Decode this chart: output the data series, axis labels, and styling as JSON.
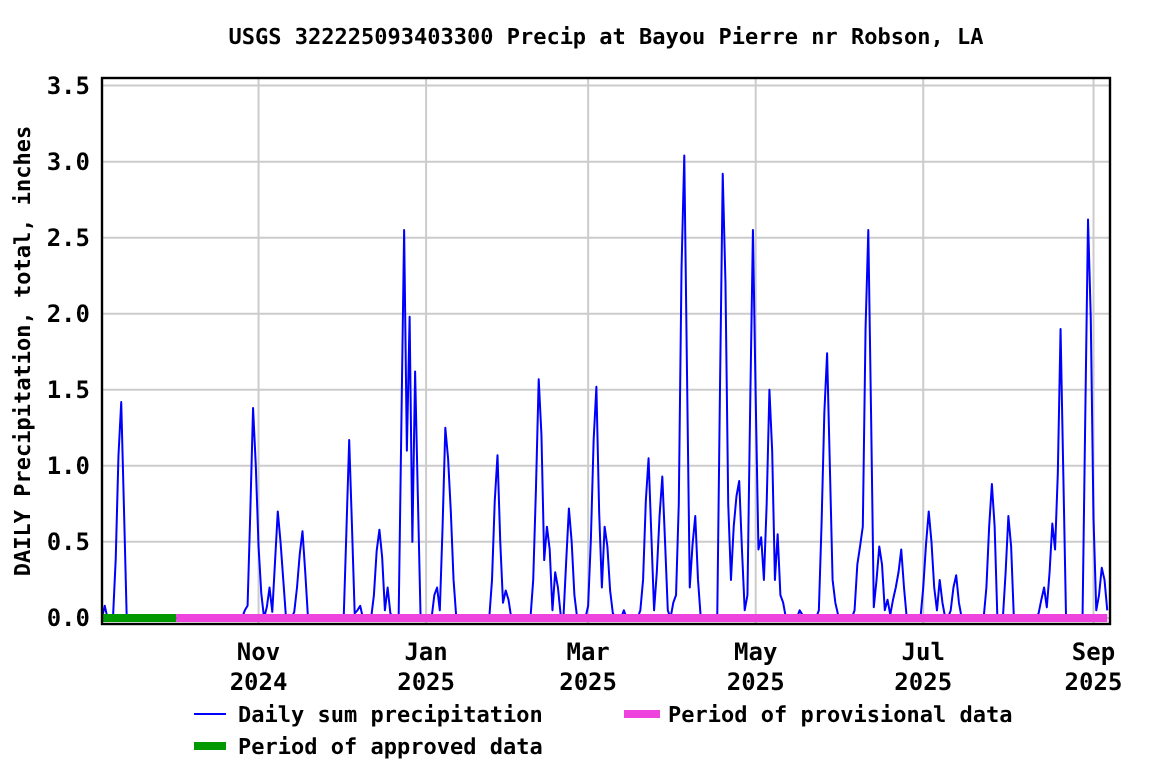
{
  "chart_data": {
    "type": "line",
    "title": "USGS 322225093403300 Precip at Bayou Pierre nr Robson, LA",
    "ylabel": "DAILY Precipitation, total, inches",
    "xlim": [
      "2024-09-05",
      "2025-09-07"
    ],
    "xticks": [
      {
        "value": "2024-11-01",
        "label": "Nov\n2024"
      },
      {
        "value": "2025-01-01",
        "label": "Jan\n2025"
      },
      {
        "value": "2025-03-01",
        "label": "Mar\n2025"
      },
      {
        "value": "2025-05-01",
        "label": "May\n2025"
      },
      {
        "value": "2025-07-01",
        "label": "Jul\n2025"
      },
      {
        "value": "2025-09-01",
        "label": "Sep\n2025"
      }
    ],
    "ylim": [
      -0.04,
      3.55
    ],
    "yticks": [
      {
        "value": 0,
        "label": "0.0"
      },
      {
        "value": 0.5,
        "label": "0.5"
      },
      {
        "value": 1,
        "label": "1.0"
      },
      {
        "value": 1.5,
        "label": "1.5"
      },
      {
        "value": 2,
        "label": "2.0"
      },
      {
        "value": 2.5,
        "label": "2.5"
      },
      {
        "value": 3,
        "label": "3.0"
      },
      {
        "value": 3.5,
        "label": "3.5"
      }
    ],
    "grid": true,
    "legend": "bottom",
    "marker": "none",
    "line_style": "solid",
    "series": [
      {
        "name": "Daily sum precipitation",
        "color": "#0000ff",
        "x": [
          "2024-09-05",
          "2024-09-06",
          "2024-09-07",
          "2024-09-09",
          "2024-09-10",
          "2024-09-11",
          "2024-09-12",
          "2024-09-13",
          "2024-09-14",
          "2024-09-28",
          "2024-09-30",
          "2024-10-26",
          "2024-10-27",
          "2024-10-28",
          "2024-10-29",
          "2024-10-30",
          "2024-10-31",
          "2024-11-01",
          "2024-11-02",
          "2024-11-03",
          "2024-11-04",
          "2024-11-05",
          "2024-11-06",
          "2024-11-07",
          "2024-11-08",
          "2024-11-09",
          "2024-11-10",
          "2024-11-11",
          "2024-11-12",
          "2024-11-13",
          "2024-11-14",
          "2024-11-15",
          "2024-11-16",
          "2024-11-17",
          "2024-11-18",
          "2024-11-19",
          "2024-12-02",
          "2024-12-03",
          "2024-12-04",
          "2024-12-05",
          "2024-12-06",
          "2024-12-07",
          "2024-12-08",
          "2024-12-09",
          "2024-12-12",
          "2024-12-13",
          "2024-12-14",
          "2024-12-15",
          "2024-12-16",
          "2024-12-17",
          "2024-12-18",
          "2024-12-19",
          "2024-12-20",
          "2024-12-22",
          "2024-12-23",
          "2024-12-24",
          "2024-12-25",
          "2024-12-26",
          "2024-12-27",
          "2024-12-28",
          "2024-12-29",
          "2024-12-30",
          "2025-01-03",
          "2025-01-04",
          "2025-01-05",
          "2025-01-06",
          "2025-01-07",
          "2025-01-08",
          "2025-01-09",
          "2025-01-10",
          "2025-01-11",
          "2025-01-12",
          "2025-01-18",
          "2025-01-20",
          "2025-01-24",
          "2025-01-25",
          "2025-01-26",
          "2025-01-27",
          "2025-01-28",
          "2025-01-29",
          "2025-01-30",
          "2025-01-31",
          "2025-02-01",
          "2025-02-08",
          "2025-02-09",
          "2025-02-10",
          "2025-02-11",
          "2025-02-12",
          "2025-02-13",
          "2025-02-14",
          "2025-02-15",
          "2025-02-16",
          "2025-02-17",
          "2025-02-18",
          "2025-02-19",
          "2025-02-20",
          "2025-02-21",
          "2025-02-22",
          "2025-02-23",
          "2025-02-24",
          "2025-02-25",
          "2025-02-28",
          "2025-03-01",
          "2025-03-02",
          "2025-03-03",
          "2025-03-04",
          "2025-03-05",
          "2025-03-06",
          "2025-03-07",
          "2025-03-08",
          "2025-03-09",
          "2025-03-10",
          "2025-03-11",
          "2025-03-13",
          "2025-03-14",
          "2025-03-15",
          "2025-03-19",
          "2025-03-20",
          "2025-03-21",
          "2025-03-22",
          "2025-03-23",
          "2025-03-24",
          "2025-03-25",
          "2025-03-26",
          "2025-03-27",
          "2025-03-28",
          "2025-03-29",
          "2025-03-30",
          "2025-03-31",
          "2025-04-01",
          "2025-04-02",
          "2025-04-03",
          "2025-04-04",
          "2025-04-05",
          "2025-04-06",
          "2025-04-07",
          "2025-04-08",
          "2025-04-09",
          "2025-04-10",
          "2025-04-11",
          "2025-04-17",
          "2025-04-18",
          "2025-04-19",
          "2025-04-20",
          "2025-04-21",
          "2025-04-22",
          "2025-04-23",
          "2025-04-24",
          "2025-04-25",
          "2025-04-26",
          "2025-04-27",
          "2025-04-28",
          "2025-04-29",
          "2025-04-30",
          "2025-05-01",
          "2025-05-02",
          "2025-05-03",
          "2025-05-04",
          "2025-05-05",
          "2025-05-06",
          "2025-05-07",
          "2025-05-08",
          "2025-05-09",
          "2025-05-10",
          "2025-05-11",
          "2025-05-12",
          "2025-05-15",
          "2025-05-16",
          "2025-05-17",
          "2025-05-18",
          "2025-05-19",
          "2025-05-21",
          "2025-05-22",
          "2025-05-23",
          "2025-05-24",
          "2025-05-25",
          "2025-05-26",
          "2025-05-27",
          "2025-05-28",
          "2025-05-29",
          "2025-05-30",
          "2025-05-31",
          "2025-06-01",
          "2025-06-02",
          "2025-06-03",
          "2025-06-05",
          "2025-06-06",
          "2025-06-07",
          "2025-06-08",
          "2025-06-09",
          "2025-06-10",
          "2025-06-11",
          "2025-06-12",
          "2025-06-13",
          "2025-06-14",
          "2025-06-15",
          "2025-06-16",
          "2025-06-17",
          "2025-06-18",
          "2025-06-19",
          "2025-06-20",
          "2025-06-21",
          "2025-06-22",
          "2025-06-23",
          "2025-06-24",
          "2025-06-25",
          "2025-06-30",
          "2025-07-01",
          "2025-07-02",
          "2025-07-03",
          "2025-07-04",
          "2025-07-05",
          "2025-07-06",
          "2025-07-07",
          "2025-07-08",
          "2025-07-09",
          "2025-07-10",
          "2025-07-11",
          "2025-07-12",
          "2025-07-13",
          "2025-07-14",
          "2025-07-15",
          "2025-07-23",
          "2025-07-24",
          "2025-07-25",
          "2025-07-26",
          "2025-07-27",
          "2025-07-28",
          "2025-07-30",
          "2025-07-31",
          "2025-08-01",
          "2025-08-02",
          "2025-08-03",
          "2025-08-08",
          "2025-08-09",
          "2025-08-10",
          "2025-08-11",
          "2025-08-12",
          "2025-08-13",
          "2025-08-14",
          "2025-08-15",
          "2025-08-16",
          "2025-08-17",
          "2025-08-18",
          "2025-08-19",
          "2025-08-20",
          "2025-08-21",
          "2025-08-22",
          "2025-08-28",
          "2025-08-29",
          "2025-08-30",
          "2025-08-31",
          "2025-09-01",
          "2025-09-02",
          "2025-09-03",
          "2025-09-04",
          "2025-09-05",
          "2025-09-06"
        ],
        "values": [
          0,
          0.08,
          0,
          0,
          0.39,
          1.07,
          1.42,
          0.72,
          0,
          0,
          0,
          0,
          0.05,
          0.08,
          0.7,
          1.38,
          1.0,
          0.47,
          0.16,
          0,
          0.07,
          0.2,
          0.04,
          0.37,
          0.7,
          0.5,
          0.25,
          0,
          0.02,
          0,
          0.04,
          0.2,
          0.42,
          0.57,
          0.3,
          0,
          0,
          0.58,
          1.17,
          0.61,
          0.03,
          0.05,
          0.08,
          0,
          0,
          0.15,
          0.44,
          0.58,
          0.4,
          0.05,
          0.2,
          0.03,
          0,
          0,
          1.27,
          2.55,
          1.1,
          1.98,
          0.5,
          1.62,
          0.8,
          0,
          0,
          0.15,
          0.2,
          0.05,
          0.6,
          1.25,
          1.05,
          0.7,
          0.25,
          0,
          0,
          0,
          0,
          0.25,
          0.77,
          1.07,
          0.5,
          0.1,
          0.18,
          0.12,
          0,
          0,
          0.25,
          0.85,
          1.57,
          1.2,
          0.38,
          0.6,
          0.45,
          0.05,
          0.3,
          0.2,
          0.02,
          0,
          0.37,
          0.72,
          0.5,
          0.15,
          0,
          0,
          0.08,
          0.52,
          1.17,
          1.52,
          0.7,
          0.2,
          0.6,
          0.47,
          0.18,
          0.03,
          0,
          0,
          0.05,
          0,
          0,
          0.05,
          0.25,
          0.77,
          1.05,
          0.55,
          0.05,
          0.3,
          0.67,
          0.93,
          0.5,
          0.05,
          0,
          0.1,
          0.15,
          0.75,
          2.3,
          3.04,
          1.6,
          0.2,
          0.48,
          0.67,
          0.25,
          0,
          0,
          1.5,
          2.92,
          2.2,
          0.75,
          0.25,
          0.6,
          0.8,
          0.9,
          0.45,
          0.05,
          0.15,
          1.4,
          2.55,
          1.45,
          0.45,
          0.53,
          0.25,
          0.75,
          1.5,
          1.1,
          0.25,
          0.55,
          0.15,
          0.1,
          0,
          0.01,
          0,
          0.05,
          0.02,
          0,
          0.01,
          0,
          0,
          0.05,
          0.63,
          1.35,
          1.74,
          1.0,
          0.25,
          0.1,
          0.02,
          0,
          0.01,
          0,
          0,
          0.05,
          0.35,
          0.47,
          0.6,
          1.9,
          2.55,
          1.35,
          0.07,
          0.25,
          0.47,
          0.35,
          0.05,
          0.12,
          0.02,
          0.12,
          0.2,
          0.3,
          0.45,
          0.2,
          0,
          0,
          0.2,
          0.48,
          0.7,
          0.5,
          0.2,
          0.05,
          0.25,
          0.1,
          0,
          0,
          0.05,
          0.2,
          0.28,
          0.1,
          0,
          0,
          0.2,
          0.6,
          0.88,
          0.6,
          0,
          0,
          0.3,
          0.67,
          0.47,
          0,
          0,
          0.01,
          0.01,
          0,
          0.03,
          0.12,
          0.2,
          0.07,
          0.3,
          0.62,
          0.45,
          0.95,
          1.9,
          0.95,
          0,
          0,
          1.33,
          2.62,
          1.97,
          0.65,
          0.05,
          0.15,
          0.33,
          0.25,
          0.05
        ]
      },
      {
        "name": "Period of provisional data",
        "color": "#ee44dd",
        "x": [
          "2024-10-02",
          "2025-09-06"
        ],
        "values": [
          0,
          0
        ]
      },
      {
        "name": "Period of approved data",
        "color": "#009900",
        "x": [
          "2024-09-05",
          "2024-10-02"
        ],
        "values": [
          0,
          0
        ]
      }
    ]
  }
}
